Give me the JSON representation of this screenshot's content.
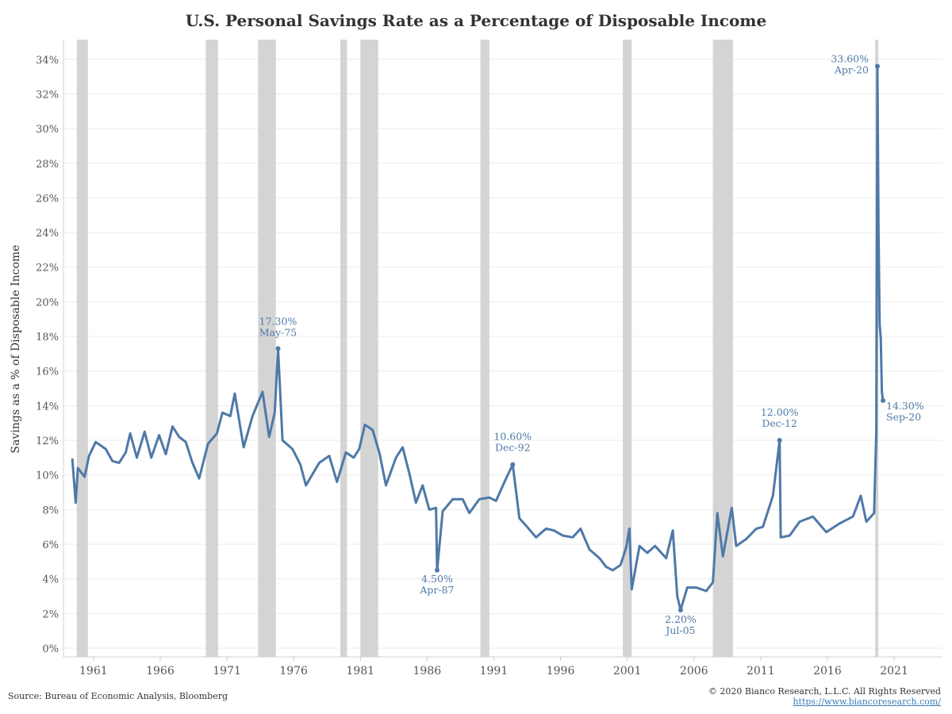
{
  "chart_data": {
    "type": "line",
    "title": "U.S. Personal Savings Rate as a Percentage of Disposable Income",
    "ylabel": "Savings as a % of Disposable Income",
    "xlabel": "",
    "ylim": [
      0,
      35
    ],
    "yticks": [
      "0%",
      "2%",
      "4%",
      "6%",
      "8%",
      "10%",
      "12%",
      "14%",
      "16%",
      "18%",
      "20%",
      "22%",
      "24%",
      "26%",
      "28%",
      "30%",
      "32%",
      "34%"
    ],
    "xticks": [
      "1961",
      "1966",
      "1971",
      "1976",
      "1981",
      "1986",
      "1991",
      "1996",
      "2001",
      "2006",
      "2011",
      "2016",
      "2021"
    ],
    "grid": "horizontal",
    "line_color": "#4e79a7",
    "recession_color": "#d4d4d4",
    "recessions": [
      [
        "1960-04",
        "1961-02"
      ],
      [
        "1969-12",
        "1970-11"
      ],
      [
        "1973-11",
        "1975-03"
      ],
      [
        "1980-01",
        "1980-07"
      ],
      [
        "1981-07",
        "1982-11"
      ],
      [
        "1990-07",
        "1991-03"
      ],
      [
        "2001-03",
        "2001-11"
      ],
      [
        "2007-12",
        "2009-06"
      ],
      [
        "2020-02",
        "2020-04"
      ]
    ],
    "series": [
      {
        "points": [
          [
            "1959-12",
            10.9
          ],
          [
            "1960-03",
            8.4
          ],
          [
            "1960-05",
            10.4
          ],
          [
            "1960-11",
            9.9
          ],
          [
            "1961-03",
            11.1
          ],
          [
            "1961-09",
            11.9
          ],
          [
            "1962-06",
            11.5
          ],
          [
            "1962-12",
            10.8
          ],
          [
            "1963-06",
            10.7
          ],
          [
            "1963-12",
            11.3
          ],
          [
            "1964-04",
            12.4
          ],
          [
            "1964-10",
            11.0
          ],
          [
            "1965-05",
            12.5
          ],
          [
            "1965-11",
            11.0
          ],
          [
            "1966-06",
            12.3
          ],
          [
            "1966-12",
            11.2
          ],
          [
            "1967-06",
            12.8
          ],
          [
            "1967-12",
            12.2
          ],
          [
            "1968-06",
            11.9
          ],
          [
            "1968-12",
            10.7
          ],
          [
            "1969-06",
            9.8
          ],
          [
            "1970-02",
            11.8
          ],
          [
            "1970-10",
            12.4
          ],
          [
            "1971-03",
            13.6
          ],
          [
            "1971-10",
            13.4
          ],
          [
            "1972-02",
            14.7
          ],
          [
            "1972-10",
            11.6
          ],
          [
            "1973-06",
            13.4
          ],
          [
            "1974-03",
            14.8
          ],
          [
            "1974-09",
            12.2
          ],
          [
            "1975-02",
            13.6
          ],
          [
            "1975-05",
            17.3
          ],
          [
            "1975-09",
            12.0
          ],
          [
            "1976-06",
            11.5
          ],
          [
            "1977-01",
            10.6
          ],
          [
            "1977-06",
            9.4
          ],
          [
            "1978-06",
            10.7
          ],
          [
            "1979-03",
            11.1
          ],
          [
            "1979-10",
            9.6
          ],
          [
            "1980-06",
            11.3
          ],
          [
            "1981-01",
            11.0
          ],
          [
            "1981-06",
            11.5
          ],
          [
            "1981-11",
            12.9
          ],
          [
            "1982-06",
            12.6
          ],
          [
            "1982-12",
            11.3
          ],
          [
            "1983-06",
            9.4
          ],
          [
            "1984-03",
            11.0
          ],
          [
            "1984-09",
            11.6
          ],
          [
            "1985-03",
            10.1
          ],
          [
            "1985-09",
            8.4
          ],
          [
            "1986-03",
            9.4
          ],
          [
            "1986-09",
            8.0
          ],
          [
            "1987-03",
            8.1
          ],
          [
            "1987-04",
            4.5
          ],
          [
            "1987-09",
            7.9
          ],
          [
            "1988-06",
            8.6
          ],
          [
            "1989-03",
            8.6
          ],
          [
            "1989-09",
            7.8
          ],
          [
            "1990-06",
            8.6
          ],
          [
            "1991-03",
            8.7
          ],
          [
            "1991-09",
            8.5
          ],
          [
            "1992-06",
            9.8
          ],
          [
            "1992-12",
            10.6
          ],
          [
            "1993-06",
            7.5
          ],
          [
            "1994-01",
            7.0
          ],
          [
            "1994-09",
            6.4
          ],
          [
            "1995-06",
            6.9
          ],
          [
            "1996-01",
            6.8
          ],
          [
            "1996-09",
            6.5
          ],
          [
            "1997-06",
            6.4
          ],
          [
            "1998-01",
            6.9
          ],
          [
            "1998-09",
            5.7
          ],
          [
            "1999-06",
            5.2
          ],
          [
            "1999-12",
            4.7
          ],
          [
            "2000-06",
            4.5
          ],
          [
            "2001-01",
            4.8
          ],
          [
            "2001-06",
            5.8
          ],
          [
            "2001-09",
            6.9
          ],
          [
            "2001-11",
            3.4
          ],
          [
            "2002-06",
            5.9
          ],
          [
            "2003-01",
            5.5
          ],
          [
            "2003-08",
            5.9
          ],
          [
            "2004-06",
            5.2
          ],
          [
            "2004-12",
            6.8
          ],
          [
            "2005-04",
            3.0
          ],
          [
            "2005-07",
            2.2
          ],
          [
            "2006-01",
            3.5
          ],
          [
            "2006-09",
            3.5
          ],
          [
            "2007-06",
            3.3
          ],
          [
            "2007-12",
            3.8
          ],
          [
            "2008-04",
            7.8
          ],
          [
            "2008-09",
            5.3
          ],
          [
            "2009-05",
            8.1
          ],
          [
            "2009-09",
            5.9
          ],
          [
            "2010-06",
            6.3
          ],
          [
            "2011-03",
            6.9
          ],
          [
            "2011-09",
            7.0
          ],
          [
            "2012-06",
            8.8
          ],
          [
            "2012-12",
            12.0
          ],
          [
            "2013-01",
            6.4
          ],
          [
            "2013-09",
            6.5
          ],
          [
            "2014-06",
            7.3
          ],
          [
            "2015-06",
            7.6
          ],
          [
            "2016-06",
            6.7
          ],
          [
            "2017-06",
            7.2
          ],
          [
            "2018-06",
            7.6
          ],
          [
            "2019-01",
            8.8
          ],
          [
            "2019-06",
            7.3
          ],
          [
            "2020-01",
            7.8
          ],
          [
            "2020-03",
            12.5
          ],
          [
            "2020-04",
            33.6
          ],
          [
            "2020-05",
            24.0
          ],
          [
            "2020-06",
            18.7
          ],
          [
            "2020-07",
            17.9
          ],
          [
            "2020-08",
            14.8
          ],
          [
            "2020-09",
            14.3
          ]
        ]
      }
    ],
    "annotations": [
      {
        "value": "17.30%",
        "date": "May-75",
        "x": "1975-05",
        "y": 17.3
      },
      {
        "value": "4.50%",
        "date": "Apr-87",
        "x": "1987-04",
        "y": 4.5
      },
      {
        "value": "10.60%",
        "date": "Dec-92",
        "x": "1992-12",
        "y": 10.6
      },
      {
        "value": "2.20%",
        "date": "Jul-05",
        "x": "2005-07",
        "y": 2.2
      },
      {
        "value": "12.00%",
        "date": "Dec-12",
        "x": "2012-12",
        "y": 12.0
      },
      {
        "value": "33.60%",
        "date": "Apr-20",
        "x": "2020-04",
        "y": 33.6
      },
      {
        "value": "14.30%",
        "date": "Sep-20",
        "x": "2020-09",
        "y": 14.3
      }
    ]
  },
  "footer": {
    "source": "Source: Bureau of Economic Analysis, Bloomberg",
    "copyright": "© 2020 Bianco Research, L.L.C. All Rights Reserved",
    "website": "https://www.biancoresearch.com/"
  }
}
